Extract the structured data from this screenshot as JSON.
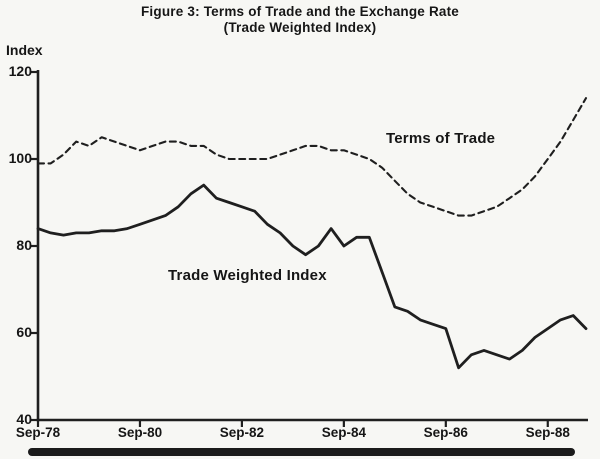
{
  "figure": {
    "title_line1": "Figure 3: Terms of Trade and the Exchange Rate",
    "title_line2": "(Trade Weighted Index)",
    "index_label": "Index"
  },
  "chart_data": {
    "type": "line",
    "title": "Figure 3: Terms of Trade and the Exchange Rate (Trade Weighted Index)",
    "xlabel": "",
    "ylabel": "Index",
    "ylim": [
      40,
      120
    ],
    "yticks": [
      120,
      100,
      80,
      60,
      40
    ],
    "xticks": [
      "Sep-78",
      "Sep-80",
      "Sep-82",
      "Sep-84",
      "Sep-86",
      "Sep-88"
    ],
    "xtick_indices": [
      0,
      8,
      16,
      24,
      32,
      40
    ],
    "grid": false,
    "legend_position": "in-plot-labels",
    "line_color": "#1f1f1f",
    "categories": [
      "Sep-78",
      "Dec-78",
      "Mar-79",
      "Jun-79",
      "Sep-79",
      "Dec-79",
      "Mar-80",
      "Jun-80",
      "Sep-80",
      "Dec-80",
      "Mar-81",
      "Jun-81",
      "Sep-81",
      "Dec-81",
      "Mar-82",
      "Jun-82",
      "Sep-82",
      "Dec-82",
      "Mar-83",
      "Jun-83",
      "Sep-83",
      "Dec-83",
      "Mar-84",
      "Jun-84",
      "Sep-84",
      "Dec-84",
      "Mar-85",
      "Jun-85",
      "Sep-85",
      "Dec-85",
      "Mar-86",
      "Jun-86",
      "Sep-86",
      "Dec-86",
      "Mar-87",
      "Jun-87",
      "Sep-87",
      "Dec-87",
      "Mar-88",
      "Jun-88",
      "Sep-88",
      "Dec-88",
      "Mar-89",
      "Jun-89"
    ],
    "series": [
      {
        "name": "Terms of Trade",
        "line_style": "dashed",
        "values": [
          99,
          99,
          101,
          104,
          103,
          105,
          104,
          103,
          102,
          103,
          104,
          104,
          103,
          103,
          101,
          100,
          100,
          100,
          100,
          101,
          102,
          103,
          103,
          102,
          102,
          101,
          100,
          98,
          95,
          92,
          90,
          89,
          88,
          87,
          87,
          88,
          89,
          91,
          93,
          96,
          100,
          104,
          109,
          114
        ]
      },
      {
        "name": "Trade Weighted Index",
        "line_style": "solid",
        "values": [
          84,
          83,
          82.5,
          83,
          83,
          83.5,
          83.5,
          84,
          85,
          86,
          87,
          89,
          92,
          94,
          91,
          90,
          89,
          88,
          85,
          83,
          80,
          78,
          80,
          84,
          80,
          82,
          82,
          74,
          66,
          65,
          63,
          62,
          61,
          52,
          55,
          56,
          55,
          54,
          56,
          59,
          61,
          63,
          64,
          61
        ]
      }
    ]
  }
}
